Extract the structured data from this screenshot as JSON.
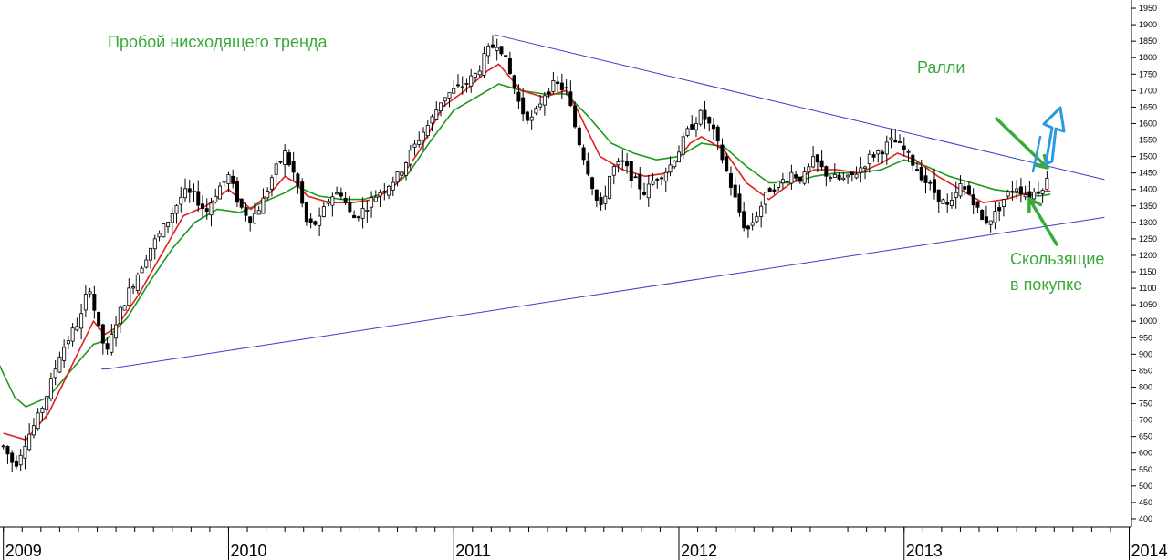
{
  "annotations": {
    "title": "Пробой нисходящего  тренда",
    "rally": "Ралли",
    "ma_line1": "Скользящие",
    "ma_line2": "в покупке"
  },
  "colors": {
    "annotation": "#3aaa3a",
    "trendlines": "#3b3bc8",
    "ma_fast": "#e02020",
    "ma_slow": "#1a9a1a",
    "rally_arrow": "#2a9ae0",
    "candle": "#000000"
  },
  "chart_data": {
    "type": "candlestick",
    "title": "Пробой нисходящего  тренда",
    "x_axis_labels": [
      "2009",
      "2010",
      "2011",
      "2012",
      "2013",
      "2014"
    ],
    "y_axis_ticks": [
      400,
      450,
      500,
      550,
      600,
      650,
      700,
      750,
      800,
      850,
      900,
      950,
      1000,
      1050,
      1100,
      1150,
      1200,
      1250,
      1300,
      1350,
      1400,
      1450,
      1500,
      1550,
      1600,
      1650,
      1700,
      1750,
      1800,
      1850,
      1900,
      1950
    ],
    "ylim": [
      375,
      1975
    ],
    "price_path": [
      [
        2009.0,
        620
      ],
      [
        2009.05,
        560
      ],
      [
        2009.1,
        640
      ],
      [
        2009.15,
        700
      ],
      [
        2009.2,
        790
      ],
      [
        2009.25,
        900
      ],
      [
        2009.3,
        960
      ],
      [
        2009.35,
        1020
      ],
      [
        2009.38,
        1120
      ],
      [
        2009.42,
        980
      ],
      [
        2009.46,
        900
      ],
      [
        2009.5,
        1000
      ],
      [
        2009.55,
        1080
      ],
      [
        2009.6,
        1150
      ],
      [
        2009.65,
        1220
      ],
      [
        2009.7,
        1270
      ],
      [
        2009.75,
        1330
      ],
      [
        2009.8,
        1390
      ],
      [
        2009.85,
        1380
      ],
      [
        2009.9,
        1330
      ],
      [
        2009.95,
        1400
      ],
      [
        2010.0,
        1440
      ],
      [
        2010.05,
        1350
      ],
      [
        2010.1,
        1310
      ],
      [
        2010.15,
        1360
      ],
      [
        2010.2,
        1450
      ],
      [
        2010.25,
        1510
      ],
      [
        2010.3,
        1430
      ],
      [
        2010.35,
        1290
      ],
      [
        2010.4,
        1300
      ],
      [
        2010.45,
        1380
      ],
      [
        2010.5,
        1390
      ],
      [
        2010.55,
        1310
      ],
      [
        2010.6,
        1340
      ],
      [
        2010.65,
        1380
      ],
      [
        2010.7,
        1410
      ],
      [
        2010.75,
        1440
      ],
      [
        2010.8,
        1500
      ],
      [
        2010.85,
        1560
      ],
      [
        2010.9,
        1610
      ],
      [
        2010.95,
        1680
      ],
      [
        2011.0,
        1700
      ],
      [
        2011.05,
        1720
      ],
      [
        2011.1,
        1750
      ],
      [
        2011.15,
        1820
      ],
      [
        2011.2,
        1850
      ],
      [
        2011.25,
        1750
      ],
      [
        2011.3,
        1640
      ],
      [
        2011.35,
        1610
      ],
      [
        2011.4,
        1690
      ],
      [
        2011.45,
        1720
      ],
      [
        2011.5,
        1700
      ],
      [
        2011.55,
        1560
      ],
      [
        2011.6,
        1450
      ],
      [
        2011.65,
        1330
      ],
      [
        2011.7,
        1460
      ],
      [
        2011.75,
        1480
      ],
      [
        2011.8,
        1430
      ],
      [
        2011.85,
        1390
      ],
      [
        2011.9,
        1440
      ],
      [
        2011.95,
        1460
      ],
      [
        2012.0,
        1520
      ],
      [
        2012.05,
        1590
      ],
      [
        2012.1,
        1630
      ],
      [
        2012.15,
        1580
      ],
      [
        2012.2,
        1480
      ],
      [
        2012.25,
        1370
      ],
      [
        2012.3,
        1270
      ],
      [
        2012.35,
        1330
      ],
      [
        2012.4,
        1400
      ],
      [
        2012.45,
        1420
      ],
      [
        2012.5,
        1450
      ],
      [
        2012.55,
        1430
      ],
      [
        2012.6,
        1490
      ],
      [
        2012.65,
        1450
      ],
      [
        2012.7,
        1430
      ],
      [
        2012.75,
        1430
      ],
      [
        2012.8,
        1460
      ],
      [
        2012.85,
        1500
      ],
      [
        2012.9,
        1520
      ],
      [
        2012.95,
        1550
      ],
      [
        2013.0,
        1520
      ],
      [
        2013.05,
        1470
      ],
      [
        2013.1,
        1420
      ],
      [
        2013.15,
        1380
      ],
      [
        2013.2,
        1340
      ],
      [
        2013.25,
        1410
      ],
      [
        2013.3,
        1380
      ],
      [
        2013.35,
        1300
      ],
      [
        2013.4,
        1320
      ],
      [
        2013.45,
        1380
      ],
      [
        2013.5,
        1410
      ],
      [
        2013.55,
        1380
      ],
      [
        2013.6,
        1400
      ],
      [
        2013.65,
        1440
      ]
    ],
    "ma_fast": [
      [
        2009.0,
        660
      ],
      [
        2009.1,
        640
      ],
      [
        2009.2,
        720
      ],
      [
        2009.3,
        860
      ],
      [
        2009.4,
        1000
      ],
      [
        2009.45,
        960
      ],
      [
        2009.5,
        980
      ],
      [
        2009.6,
        1080
      ],
      [
        2009.7,
        1200
      ],
      [
        2009.8,
        1320
      ],
      [
        2009.9,
        1350
      ],
      [
        2010.0,
        1400
      ],
      [
        2010.05,
        1370
      ],
      [
        2010.1,
        1340
      ],
      [
        2010.2,
        1400
      ],
      [
        2010.25,
        1440
      ],
      [
        2010.3,
        1420
      ],
      [
        2010.35,
        1380
      ],
      [
        2010.45,
        1360
      ],
      [
        2010.55,
        1360
      ],
      [
        2010.65,
        1370
      ],
      [
        2010.75,
        1420
      ],
      [
        2010.85,
        1520
      ],
      [
        2010.95,
        1650
      ],
      [
        2011.05,
        1700
      ],
      [
        2011.15,
        1760
      ],
      [
        2011.2,
        1780
      ],
      [
        2011.3,
        1700
      ],
      [
        2011.4,
        1680
      ],
      [
        2011.5,
        1700
      ],
      [
        2011.55,
        1640
      ],
      [
        2011.65,
        1500
      ],
      [
        2011.75,
        1460
      ],
      [
        2011.85,
        1440
      ],
      [
        2011.95,
        1450
      ],
      [
        2012.05,
        1540
      ],
      [
        2012.1,
        1560
      ],
      [
        2012.2,
        1520
      ],
      [
        2012.3,
        1420
      ],
      [
        2012.4,
        1370
      ],
      [
        2012.5,
        1420
      ],
      [
        2012.6,
        1460
      ],
      [
        2012.7,
        1460
      ],
      [
        2012.8,
        1450
      ],
      [
        2012.9,
        1480
      ],
      [
        2012.97,
        1510
      ],
      [
        2013.05,
        1490
      ],
      [
        2013.15,
        1440
      ],
      [
        2013.25,
        1400
      ],
      [
        2013.35,
        1360
      ],
      [
        2013.45,
        1370
      ],
      [
        2013.55,
        1390
      ],
      [
        2013.65,
        1395
      ]
    ],
    "ma_slow": [
      [
        2008.98,
        870
      ],
      [
        2009.05,
        770
      ],
      [
        2009.1,
        740
      ],
      [
        2009.2,
        770
      ],
      [
        2009.3,
        850
      ],
      [
        2009.4,
        930
      ],
      [
        2009.45,
        940
      ],
      [
        2009.55,
        1010
      ],
      [
        2009.65,
        1120
      ],
      [
        2009.75,
        1220
      ],
      [
        2009.85,
        1300
      ],
      [
        2009.95,
        1340
      ],
      [
        2010.05,
        1330
      ],
      [
        2010.15,
        1360
      ],
      [
        2010.25,
        1390
      ],
      [
        2010.3,
        1410
      ],
      [
        2010.4,
        1380
      ],
      [
        2010.5,
        1370
      ],
      [
        2010.6,
        1370
      ],
      [
        2010.7,
        1390
      ],
      [
        2010.8,
        1450
      ],
      [
        2010.9,
        1550
      ],
      [
        2011.0,
        1640
      ],
      [
        2011.1,
        1680
      ],
      [
        2011.2,
        1720
      ],
      [
        2011.3,
        1700
      ],
      [
        2011.4,
        1690
      ],
      [
        2011.5,
        1690
      ],
      [
        2011.6,
        1620
      ],
      [
        2011.7,
        1540
      ],
      [
        2011.8,
        1510
      ],
      [
        2011.9,
        1490
      ],
      [
        2012.0,
        1500
      ],
      [
        2012.1,
        1540
      ],
      [
        2012.2,
        1530
      ],
      [
        2012.3,
        1470
      ],
      [
        2012.4,
        1420
      ],
      [
        2012.5,
        1420
      ],
      [
        2012.6,
        1440
      ],
      [
        2012.7,
        1450
      ],
      [
        2012.8,
        1450
      ],
      [
        2012.9,
        1460
      ],
      [
        2013.0,
        1490
      ],
      [
        2013.1,
        1470
      ],
      [
        2013.2,
        1440
      ],
      [
        2013.3,
        1420
      ],
      [
        2013.4,
        1400
      ],
      [
        2013.5,
        1390
      ],
      [
        2013.6,
        1380
      ],
      [
        2013.65,
        1385
      ]
    ],
    "trendline_upper": [
      [
        2011.18,
        1870
      ],
      [
        2013.89,
        1430
      ]
    ],
    "trendline_lower": [
      [
        2009.46,
        855
      ],
      [
        2013.89,
        1315
      ]
    ]
  }
}
